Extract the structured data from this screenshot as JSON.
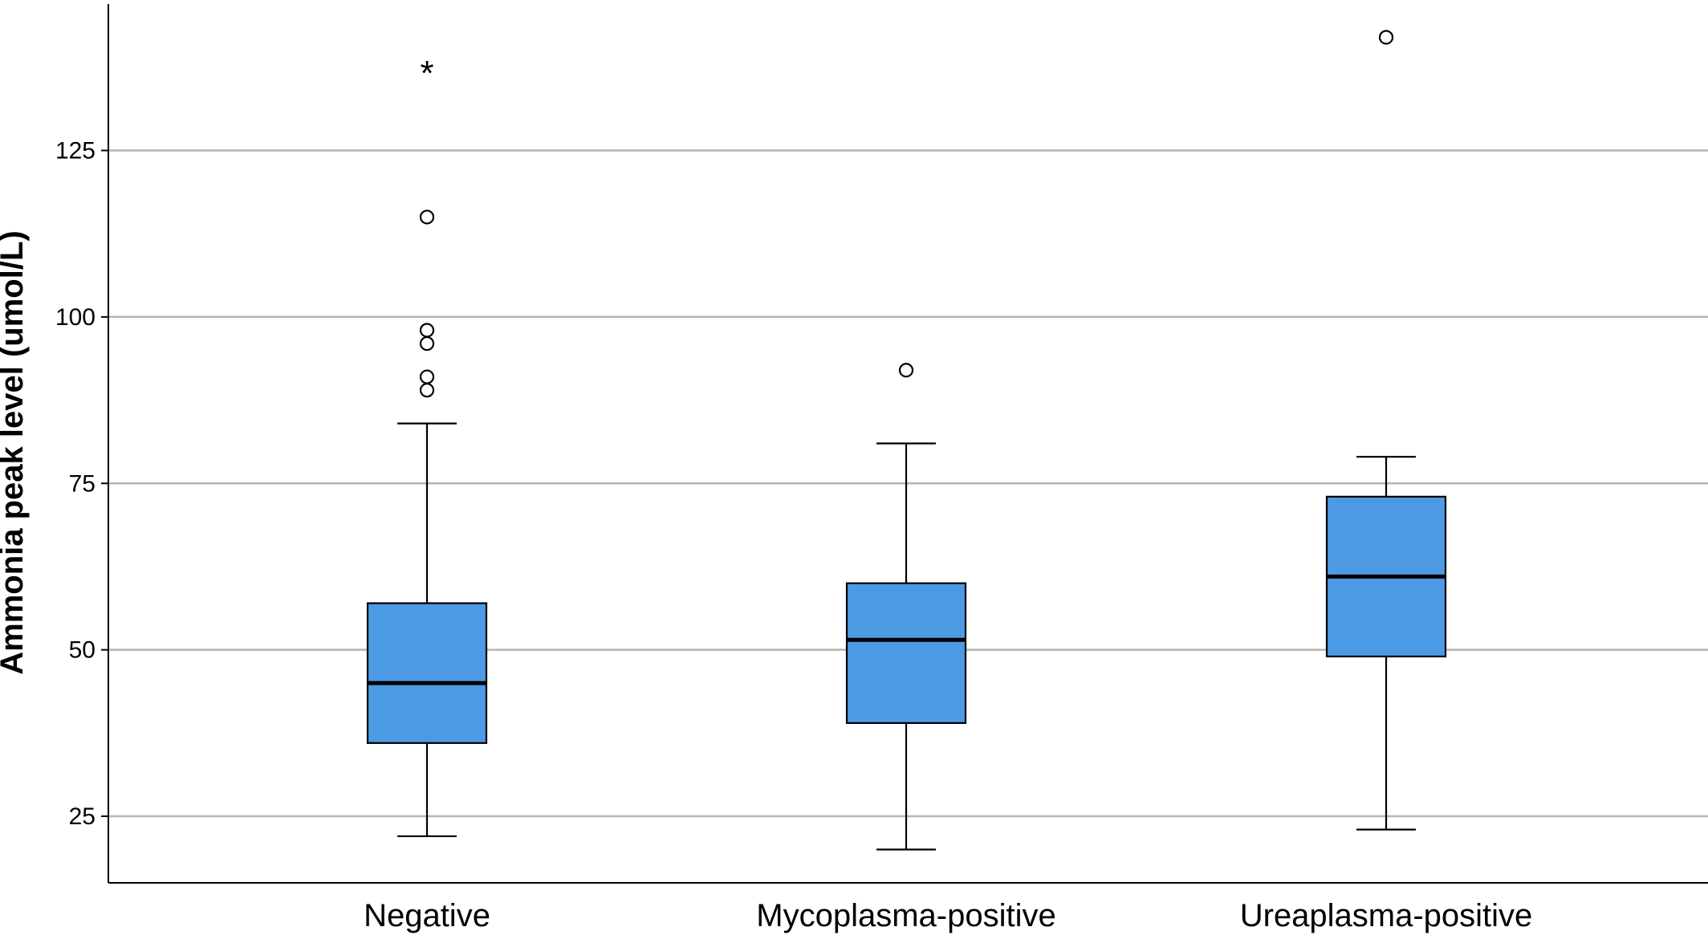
{
  "chart_data": {
    "type": "boxplot",
    "title": "",
    "xlabel": "",
    "ylabel": "Ammonia peak level (umol/L)",
    "ylim": [
      15,
      147
    ],
    "yticks": [
      25,
      50,
      75,
      100,
      125
    ],
    "grid": "horizontal",
    "box_color": "#4d9ae4",
    "series": [
      {
        "category": "Negative",
        "whisker_low": 22,
        "q1": 36,
        "median": 45,
        "q3": 57,
        "whisker_high": 84,
        "outliers": [
          89,
          91,
          96,
          98,
          115
        ],
        "extremes": [
          137
        ]
      },
      {
        "category": "Mycoplasma-positive",
        "whisker_low": 20,
        "q1": 39,
        "median": 51.5,
        "q3": 60,
        "whisker_high": 81,
        "outliers": [
          92
        ],
        "extremes": []
      },
      {
        "category": "Ureaplasma-positive",
        "whisker_low": 23,
        "q1": 49,
        "median": 61,
        "q3": 73,
        "whisker_high": 79,
        "outliers": [
          142
        ],
        "extremes": []
      }
    ]
  }
}
